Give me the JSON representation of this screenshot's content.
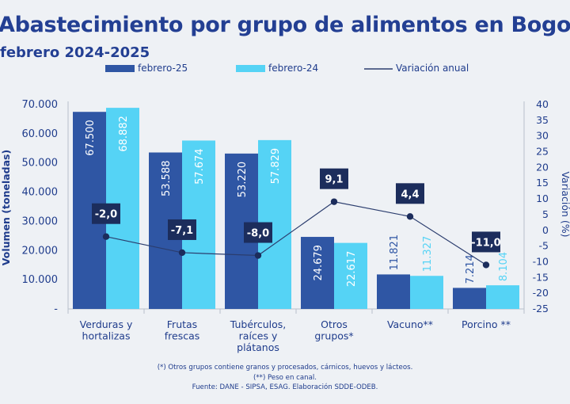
{
  "title": "Abastecimiento por grupo de alimentos en Bogotá",
  "subtitle": "febrero 2024-2025",
  "colors": {
    "febrero-25": "#2f56a4",
    "febrero-24": "#55d3f5",
    "variacion": "#2b3d6e",
    "text": "#1f3c8c",
    "badge": "#1c2d5c"
  },
  "chart_data": {
    "type": "bar",
    "categories": [
      [
        "Verduras y",
        "hortalizas"
      ],
      [
        "Frutas",
        "frescas"
      ],
      [
        "Tubérculos,",
        "raíces y",
        "plátanos"
      ],
      [
        "Otros",
        "grupos*"
      ],
      [
        "Vacuno**"
      ],
      [
        "Porcino **"
      ]
    ],
    "series": [
      {
        "name": "febrero-25",
        "type": "bar",
        "values": [
          67500,
          53588,
          53220,
          24679,
          11821,
          7214
        ],
        "labels": [
          "67.500",
          "53.588",
          "53.220",
          "24.679",
          "11.821",
          "7.214"
        ]
      },
      {
        "name": "febrero-24",
        "type": "bar",
        "values": [
          68882,
          57674,
          57829,
          22617,
          11327,
          8104
        ],
        "labels": [
          "68.882",
          "57.674",
          "57.829",
          "22.617",
          "11.327",
          "8.104"
        ]
      },
      {
        "name": "Variación anual",
        "type": "line",
        "axis": "right",
        "values": [
          -2.0,
          -7.1,
          -8.0,
          9.1,
          4.4,
          -11.0
        ],
        "labels": [
          "-2,0",
          "-7,1",
          "-8,0",
          "9,1",
          "4,4",
          "-11,0"
        ]
      }
    ],
    "ylabel": "Volumen (toneladas)",
    "ylim": [
      0,
      70000
    ],
    "yticks": [
      "-",
      "10.000",
      "20.000",
      "30.000",
      "40.000",
      "50.000",
      "60.000",
      "70.000"
    ],
    "y2label": "Variación (%)",
    "y2lim": [
      -25,
      40
    ],
    "y2ticks": [
      "-25",
      "-20",
      "-15",
      "-10",
      "-5",
      "0",
      "5",
      "10",
      "15",
      "20",
      "25",
      "30",
      "35",
      "40"
    ],
    "legend": "top",
    "grid": false
  },
  "notes": [
    "(*) Otros grupos contiene granos y procesados, cárnicos, huevos y lácteos.",
    "(**) Peso en canal.",
    "Fuente: DANE - SIPSA, ESAG. Elaboración SDDE-ODEB."
  ]
}
